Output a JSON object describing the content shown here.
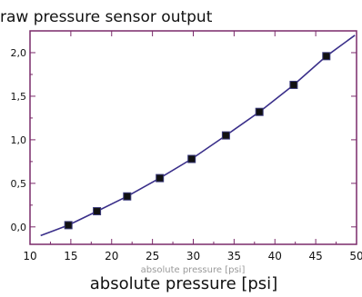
{
  "chart_data": {
    "type": "scatter",
    "title": "raw pressure sensor output",
    "xlabel": "absolute pressure [psi]",
    "xlabel_ghost": "absolute pressure [psi]",
    "ylabel": "",
    "xlim": [
      10,
      50
    ],
    "ylim": [
      -0.2,
      2.25
    ],
    "xticks": [
      10,
      15,
      20,
      25,
      30,
      35,
      40,
      45,
      50
    ],
    "yticks": [
      0.0,
      0.5,
      1.0,
      1.5,
      2.0
    ],
    "yticklabels": [
      "0,0",
      "0,5",
      "1,0",
      "1,5",
      "2,0"
    ],
    "grid": false,
    "colors": {
      "frame": "#7a2a6a",
      "line": "#3a2f8a",
      "marker": "#111111"
    },
    "series": [
      {
        "marker": "square",
        "x": [
          14.7,
          18.2,
          21.9,
          25.9,
          29.8,
          34.0,
          38.1,
          42.3,
          46.3
        ],
        "y": [
          0.02,
          0.18,
          0.35,
          0.56,
          0.78,
          1.05,
          1.32,
          1.63,
          1.96
        ]
      }
    ],
    "fit": {
      "x": [
        11.3,
        14.7,
        18.2,
        21.9,
        25.9,
        29.8,
        34.0,
        38.1,
        42.3,
        46.3,
        49.8
      ],
      "y": [
        -0.1,
        0.02,
        0.18,
        0.35,
        0.56,
        0.78,
        1.05,
        1.32,
        1.63,
        1.96,
        2.2
      ]
    }
  }
}
